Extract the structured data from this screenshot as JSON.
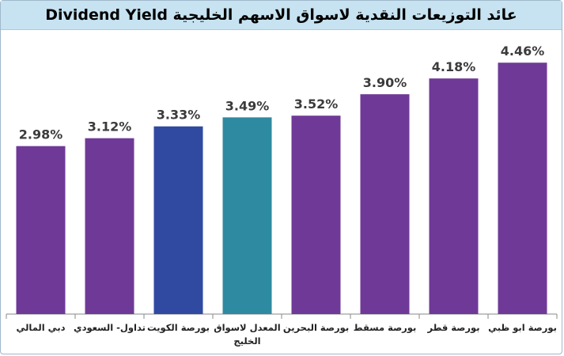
{
  "title": "عائد التوزيعات النقدية لاسواق الاسهم الخليجية  Dividend Yield",
  "chart_data": {
    "type": "bar",
    "title": "عائد التوزيعات النقدية لاسواق الاسهم الخليجية  Dividend Yield",
    "xlabel": "",
    "ylabel": "",
    "ylim": [
      0,
      4.8
    ],
    "grid": false,
    "legend": "none",
    "categories": [
      "دبي المالي",
      "تداول- السعودي",
      "بورصة الكويت",
      "المعدل لاسواق الخليج",
      "بورصة البحرين",
      "بورصة مسقط",
      "بورصة قطر",
      "بورصة ابو ظبي"
    ],
    "values": [
      2.98,
      3.12,
      3.33,
      3.49,
      3.52,
      3.9,
      4.18,
      4.46
    ],
    "value_labels": [
      "2.98%",
      "3.12%",
      "3.33%",
      "3.49%",
      "3.52%",
      "3.90%",
      "4.18%",
      "4.46%"
    ],
    "colors": [
      "#6f3a97",
      "#6f3a97",
      "#2f4aa0",
      "#2e8aa0",
      "#6f3a97",
      "#6f3a97",
      "#6f3a97",
      "#6f3a97"
    ]
  }
}
